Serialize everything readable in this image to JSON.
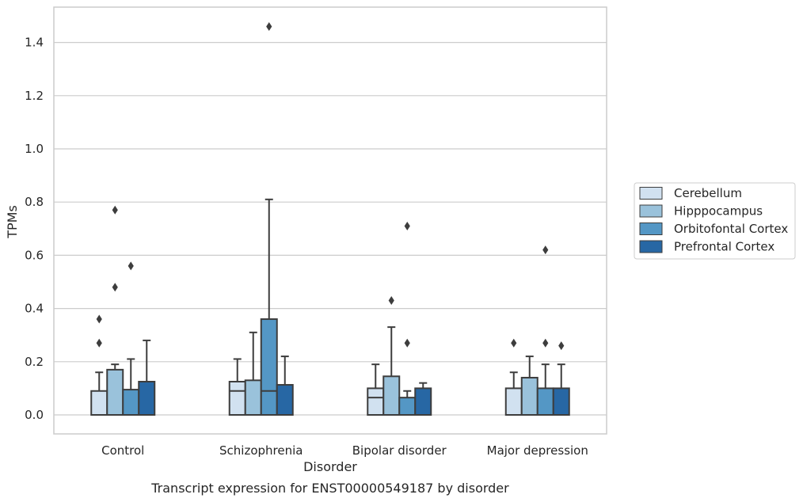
{
  "chart_data": {
    "type": "box",
    "xlabel": "Disorder",
    "ylabel": "TPMs",
    "caption": "Transcript expression for ENST00000549187 by disorder",
    "ylim": [
      -0.07,
      1.54
    ],
    "yticks": [
      0.0,
      0.2,
      0.4,
      0.6,
      0.8,
      1.0,
      1.2,
      1.4
    ],
    "ytick_labels": [
      "0.0",
      "0.2",
      "0.4",
      "0.6",
      "0.8",
      "1.0",
      "1.2",
      "1.4"
    ],
    "grid": true,
    "legend_position": "right",
    "categories": [
      "Control",
      "Schizophrenia",
      "Bipolar disorder",
      "Major depression"
    ],
    "series": [
      {
        "name": "Cerebellum",
        "color": "#d1e1f0",
        "boxes": [
          {
            "min": 0.0,
            "q1": 0.0,
            "median": 0.0,
            "q3": 0.09,
            "max": 0.16,
            "outliers": [
              0.27,
              0.36
            ]
          },
          {
            "min": 0.0,
            "q1": 0.0,
            "median": 0.09,
            "q3": 0.125,
            "max": 0.21,
            "outliers": []
          },
          {
            "min": 0.0,
            "q1": 0.0,
            "median": 0.065,
            "q3": 0.1,
            "max": 0.19,
            "outliers": []
          },
          {
            "min": 0.0,
            "q1": 0.0,
            "median": 0.0,
            "q3": 0.1,
            "max": 0.16,
            "outliers": [
              0.27
            ]
          }
        ]
      },
      {
        "name": "Hipppocampus",
        "color": "#9ac2db",
        "boxes": [
          {
            "min": 0.0,
            "q1": 0.0,
            "median": 0.0,
            "q3": 0.17,
            "max": 0.19,
            "outliers": [
              0.48,
              0.77
            ]
          },
          {
            "min": 0.0,
            "q1": 0.0,
            "median": 0.0,
            "q3": 0.13,
            "max": 0.31,
            "outliers": []
          },
          {
            "min": 0.0,
            "q1": 0.0,
            "median": 0.0,
            "q3": 0.145,
            "max": 0.33,
            "outliers": [
              0.43
            ]
          },
          {
            "min": 0.0,
            "q1": 0.0,
            "median": 0.0,
            "q3": 0.14,
            "max": 0.22,
            "outliers": []
          }
        ]
      },
      {
        "name": "Orbitofontal Cortex",
        "color": "#5497c5",
        "boxes": [
          {
            "min": 0.0,
            "q1": 0.0,
            "median": 0.0,
            "q3": 0.095,
            "max": 0.21,
            "outliers": [
              0.56
            ]
          },
          {
            "min": 0.0,
            "q1": 0.0,
            "median": 0.09,
            "q3": 0.36,
            "max": 0.81,
            "outliers": [
              1.46
            ]
          },
          {
            "min": 0.0,
            "q1": 0.0,
            "median": 0.0,
            "q3": 0.065,
            "max": 0.09,
            "outliers": [
              0.27,
              0.71
            ]
          },
          {
            "min": 0.0,
            "q1": 0.0,
            "median": 0.0,
            "q3": 0.1,
            "max": 0.19,
            "outliers": [
              0.27,
              0.62
            ]
          }
        ]
      },
      {
        "name": "Prefrontal Cortex",
        "color": "#2767a4",
        "boxes": [
          {
            "min": 0.0,
            "q1": 0.0,
            "median": 0.0,
            "q3": 0.125,
            "max": 0.28,
            "outliers": []
          },
          {
            "min": 0.0,
            "q1": 0.0,
            "median": 0.0,
            "q3": 0.113,
            "max": 0.22,
            "outliers": []
          },
          {
            "min": 0.0,
            "q1": 0.0,
            "median": 0.0,
            "q3": 0.1,
            "max": 0.12,
            "outliers": []
          },
          {
            "min": 0.0,
            "q1": 0.0,
            "median": 0.0,
            "q3": 0.1,
            "max": 0.19,
            "outliers": [
              0.26
            ]
          }
        ]
      }
    ]
  }
}
